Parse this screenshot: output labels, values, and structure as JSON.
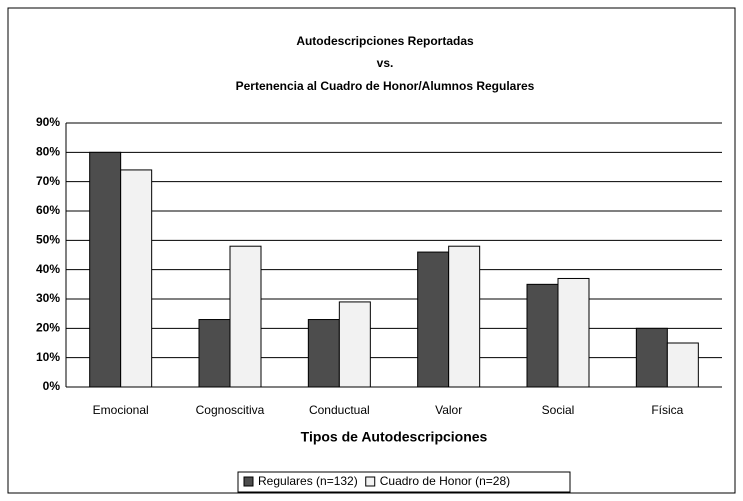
{
  "chart_data": {
    "type": "bar",
    "title": [
      "Autodescripciones Reportadas",
      "vs.",
      "Pertenencia al Cuadro de Honor/Alumnos Regulares"
    ],
    "x_label": "Tipos de Autodescripciones",
    "categories": [
      "Emocional",
      "Cognoscitiva",
      "Conductual",
      "Valor",
      "Social",
      "Física"
    ],
    "series": [
      {
        "name": "Regulares (n=132)",
        "color": "#4d4d4d",
        "values": [
          80,
          23,
          23,
          46,
          35,
          20
        ]
      },
      {
        "name": "Cuadro de Honor (n=28)",
        "color": "#f2f2f2",
        "values": [
          74,
          48,
          29,
          48,
          37,
          15
        ]
      }
    ],
    "ylim": [
      0,
      90
    ],
    "yticks": [
      {
        "value": 0,
        "label": "0%"
      },
      {
        "value": 10,
        "label": "10%"
      },
      {
        "value": 20,
        "label": "20%"
      },
      {
        "value": 30,
        "label": "30%"
      },
      {
        "value": 40,
        "label": "40%"
      },
      {
        "value": 50,
        "label": "50%"
      },
      {
        "value": 60,
        "label": "60%"
      },
      {
        "value": 70,
        "label": "70%"
      },
      {
        "value": 80,
        "label": "80%"
      },
      {
        "value": 90,
        "label": "90%"
      }
    ],
    "grid": true,
    "legend": "bottom"
  }
}
